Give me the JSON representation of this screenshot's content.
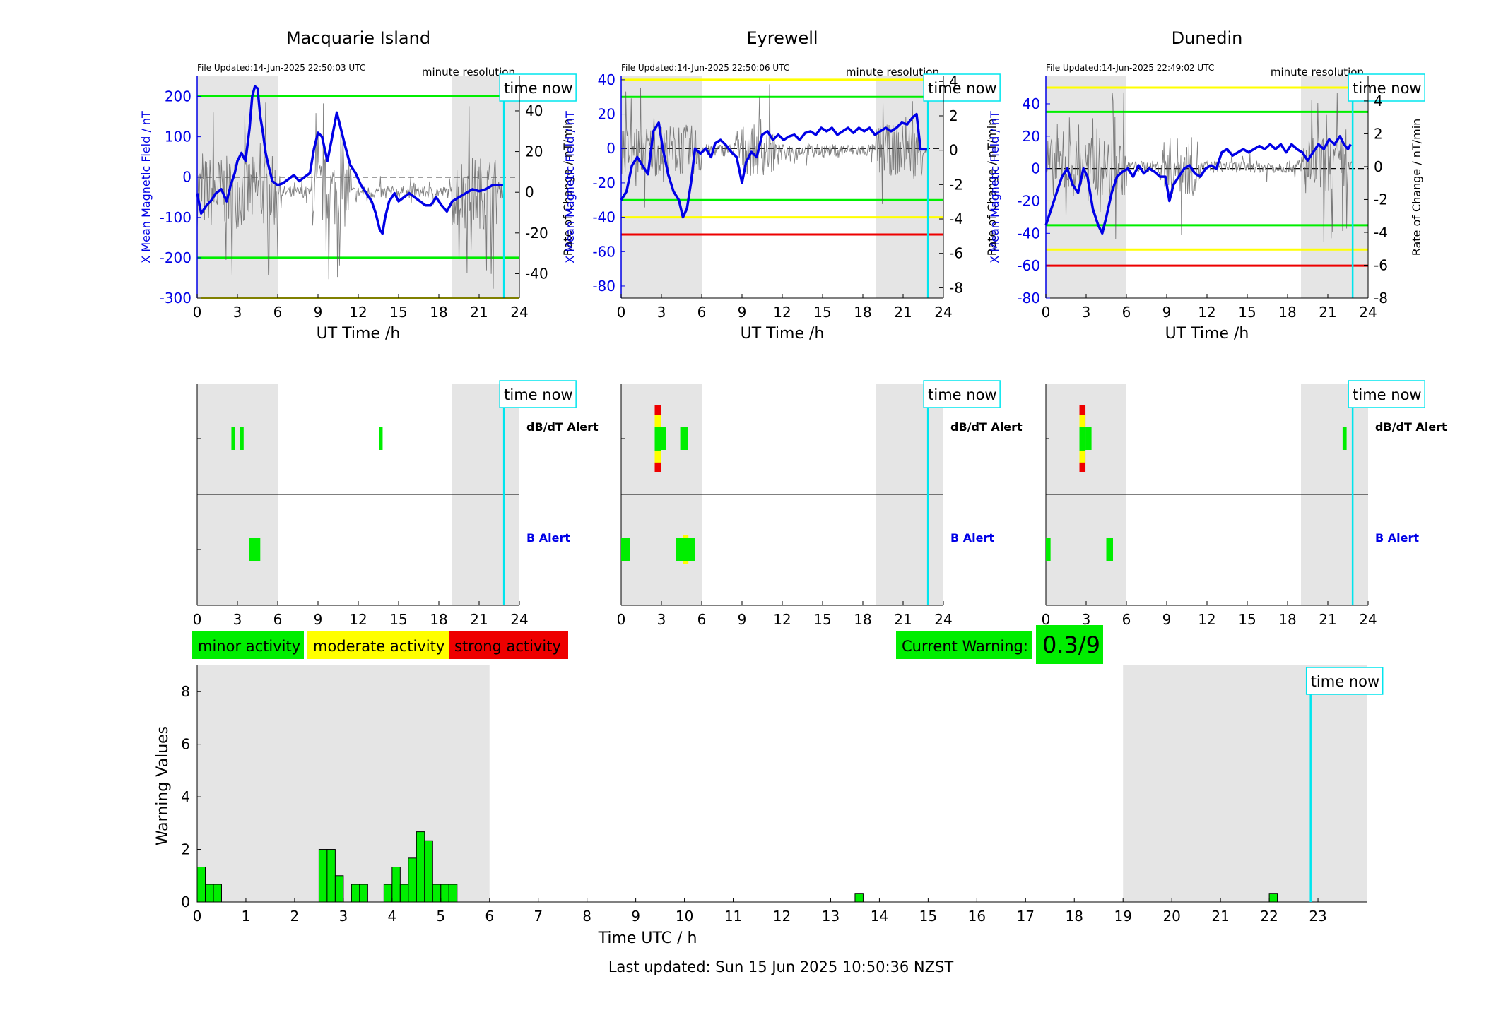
{
  "footer": {
    "last_updated": "Last updated: Sun 15 Jun 2025 10:50:36 NZST"
  },
  "colors": {
    "field_trace": "#0000e6",
    "rate_trace": "#555555",
    "night_shade": "#e5e5e5",
    "time_now_line": "#00e5ee",
    "green": "#00ee00",
    "yellow": "#ffff00",
    "red": "#ee0000",
    "axis_blue": "#0000e6"
  },
  "labels": {
    "minute_resolution": "minute resolution",
    "time_now": "time now",
    "ut_xlabel": "UT Time /h",
    "left_ylabel": "X Mean Magnetic Field / nT",
    "right_ylabel": "Rate of Change / nT/min",
    "dbdt_alert": "dB/dT Alert",
    "b_alert": "B Alert"
  },
  "legend": {
    "minor": "minor activity",
    "moderate": "moderate activity",
    "strong": "strong activity",
    "current_warning_label": "Current Warning:",
    "current_warning_value": "0.3/9"
  },
  "stations": [
    {
      "title": "Macquarie Island",
      "file_updated": "File Updated:14-Jun-2025 22:50:03 UTC",
      "left_ylim": [
        -300,
        250
      ],
      "left_ticks": [
        -300,
        -200,
        -100,
        0,
        100,
        200
      ],
      "right_ylim": [
        -52,
        57
      ],
      "right_ticks": [
        -40,
        -20,
        0,
        20,
        40
      ],
      "thresholds": [
        {
          "value": 200,
          "color": "green"
        },
        {
          "value": -200,
          "color": "green"
        },
        {
          "value": -300,
          "color": "yellow"
        }
      ],
      "field_trace": [
        [
          0,
          -40
        ],
        [
          0.3,
          -90
        ],
        [
          0.7,
          -70
        ],
        [
          1,
          -60
        ],
        [
          1.4,
          -40
        ],
        [
          1.8,
          -30
        ],
        [
          2.2,
          -60
        ],
        [
          2.5,
          -20
        ],
        [
          2.8,
          10
        ],
        [
          3,
          40
        ],
        [
          3.3,
          60
        ],
        [
          3.6,
          40
        ],
        [
          3.9,
          120
        ],
        [
          4.1,
          200
        ],
        [
          4.3,
          225
        ],
        [
          4.5,
          220
        ],
        [
          4.7,
          150
        ],
        [
          4.9,
          110
        ],
        [
          5.1,
          60
        ],
        [
          5.3,
          30
        ],
        [
          5.6,
          -10
        ],
        [
          6,
          -20
        ],
        [
          6.4,
          -15
        ],
        [
          6.8,
          -5
        ],
        [
          7.2,
          5
        ],
        [
          7.6,
          -10
        ],
        [
          8,
          0
        ],
        [
          8.4,
          10
        ],
        [
          8.7,
          70
        ],
        [
          9,
          110
        ],
        [
          9.3,
          100
        ],
        [
          9.7,
          40
        ],
        [
          10,
          90
        ],
        [
          10.4,
          160
        ],
        [
          10.7,
          120
        ],
        [
          11,
          80
        ],
        [
          11.4,
          30
        ],
        [
          11.8,
          10
        ],
        [
          12.2,
          -20
        ],
        [
          12.6,
          -40
        ],
        [
          13,
          -60
        ],
        [
          13.3,
          -90
        ],
        [
          13.6,
          -130
        ],
        [
          13.8,
          -140
        ],
        [
          14,
          -100
        ],
        [
          14.3,
          -60
        ],
        [
          14.7,
          -40
        ],
        [
          15,
          -60
        ],
        [
          15.4,
          -50
        ],
        [
          15.8,
          -40
        ],
        [
          16.2,
          -50
        ],
        [
          16.6,
          -60
        ],
        [
          17,
          -70
        ],
        [
          17.4,
          -70
        ],
        [
          17.8,
          -50
        ],
        [
          18.2,
          -70
        ],
        [
          18.6,
          -85
        ],
        [
          19,
          -60
        ],
        [
          19.5,
          -50
        ],
        [
          20,
          -40
        ],
        [
          20.5,
          -30
        ],
        [
          21,
          -35
        ],
        [
          21.5,
          -30
        ],
        [
          22,
          -20
        ],
        [
          22.5,
          -20
        ],
        [
          22.85,
          -20
        ]
      ],
      "rate_amplitude": 30,
      "rate_quiet": 5,
      "dbdt_alerts": [
        {
          "start": 2.55,
          "end": 2.8,
          "color": "green"
        },
        {
          "start": 3.2,
          "end": 3.45,
          "color": "green"
        },
        {
          "start": 13.55,
          "end": 13.8,
          "color": "green"
        }
      ],
      "b_alerts": [
        {
          "start": 3.85,
          "end": 4.7,
          "color": "green"
        }
      ]
    },
    {
      "title": "Eyrewell",
      "file_updated": "File Updated:14-Jun-2025 22:50:06 UTC",
      "left_ylim": [
        -87,
        42
      ],
      "left_ticks": [
        -80,
        -60,
        -40,
        -20,
        0,
        20,
        40
      ],
      "right_ylim": [
        -8.6,
        4.3
      ],
      "right_ticks": [
        -8,
        -6,
        -4,
        -2,
        0,
        2,
        4
      ],
      "thresholds": [
        {
          "value": 40,
          "color": "yellow"
        },
        {
          "value": 30,
          "color": "green"
        },
        {
          "value": -30,
          "color": "green"
        },
        {
          "value": -40,
          "color": "yellow"
        },
        {
          "value": -50,
          "color": "red"
        }
      ],
      "field_trace": [
        [
          0,
          -30
        ],
        [
          0.4,
          -25
        ],
        [
          0.8,
          -10
        ],
        [
          1.2,
          -5
        ],
        [
          1.6,
          -10
        ],
        [
          2,
          -15
        ],
        [
          2.4,
          10
        ],
        [
          2.8,
          15
        ],
        [
          3.1,
          0
        ],
        [
          3.5,
          -15
        ],
        [
          3.9,
          -25
        ],
        [
          4.3,
          -30
        ],
        [
          4.6,
          -40
        ],
        [
          4.9,
          -35
        ],
        [
          5.2,
          -20
        ],
        [
          5.5,
          0
        ],
        [
          5.9,
          -3
        ],
        [
          6.3,
          0
        ],
        [
          6.7,
          -5
        ],
        [
          7,
          3
        ],
        [
          7.4,
          5
        ],
        [
          7.8,
          2
        ],
        [
          8.2,
          -2
        ],
        [
          8.6,
          -5
        ],
        [
          9,
          -20
        ],
        [
          9.3,
          -8
        ],
        [
          9.7,
          -2
        ],
        [
          10.1,
          -5
        ],
        [
          10.5,
          8
        ],
        [
          10.9,
          10
        ],
        [
          11.3,
          5
        ],
        [
          11.7,
          8
        ],
        [
          12.1,
          5
        ],
        [
          12.5,
          7
        ],
        [
          12.9,
          8
        ],
        [
          13.3,
          5
        ],
        [
          13.7,
          9
        ],
        [
          14.1,
          10
        ],
        [
          14.5,
          8
        ],
        [
          14.9,
          12
        ],
        [
          15.3,
          10
        ],
        [
          15.7,
          12
        ],
        [
          16.1,
          8
        ],
        [
          16.5,
          10
        ],
        [
          16.9,
          12
        ],
        [
          17.3,
          9
        ],
        [
          17.7,
          12
        ],
        [
          18.1,
          10
        ],
        [
          18.5,
          12
        ],
        [
          18.9,
          8
        ],
        [
          19.3,
          10
        ],
        [
          19.7,
          12
        ],
        [
          20.1,
          10
        ],
        [
          20.5,
          12
        ],
        [
          20.9,
          15
        ],
        [
          21.3,
          14
        ],
        [
          21.7,
          18
        ],
        [
          22,
          20
        ],
        [
          22.3,
          -0.5
        ],
        [
          22.85,
          -0.5
        ]
      ],
      "flat_after": 22.3,
      "rate_amplitude": 2.5,
      "rate_quiet": 0.6,
      "dbdt_alerts": [
        {
          "start": 2.5,
          "end": 2.95,
          "color": "red",
          "inner": "green",
          "mid": "yellow"
        },
        {
          "start": 3.0,
          "end": 3.35,
          "color": "green"
        },
        {
          "start": 4.4,
          "end": 5.0,
          "color": "green"
        }
      ],
      "b_alerts": [
        {
          "start": 0.0,
          "end": 0.65,
          "color": "green"
        },
        {
          "start": 4.1,
          "end": 5.5,
          "color": "green",
          "mid": "yellow"
        }
      ]
    },
    {
      "title": "Dunedin",
      "file_updated": "File Updated:14-Jun-2025 22:49:02 UTC",
      "left_ylim": [
        -80,
        57
      ],
      "left_ticks": [
        -80,
        -60,
        -40,
        -20,
        0,
        20,
        40
      ],
      "right_ylim": [
        -8,
        5.5
      ],
      "right_ticks": [
        -8,
        -6,
        -4,
        -2,
        0,
        2,
        4
      ],
      "thresholds": [
        {
          "value": 50,
          "color": "yellow"
        },
        {
          "value": 35,
          "color": "green"
        },
        {
          "value": -35,
          "color": "green"
        },
        {
          "value": -50,
          "color": "yellow"
        },
        {
          "value": -60,
          "color": "red"
        }
      ],
      "field_trace": [
        [
          0,
          -35
        ],
        [
          0.4,
          -25
        ],
        [
          0.8,
          -15
        ],
        [
          1.2,
          -5
        ],
        [
          1.6,
          0
        ],
        [
          2,
          -10
        ],
        [
          2.4,
          -15
        ],
        [
          2.8,
          0
        ],
        [
          3.1,
          -5
        ],
        [
          3.5,
          -25
        ],
        [
          3.9,
          -35
        ],
        [
          4.2,
          -40
        ],
        [
          4.5,
          -30
        ],
        [
          4.9,
          -15
        ],
        [
          5.3,
          -5
        ],
        [
          5.7,
          -2
        ],
        [
          6.1,
          0
        ],
        [
          6.5,
          -5
        ],
        [
          6.9,
          2
        ],
        [
          7.3,
          -3
        ],
        [
          7.7,
          0
        ],
        [
          8.1,
          -2
        ],
        [
          8.5,
          -5
        ],
        [
          8.9,
          -5
        ],
        [
          9.2,
          -20
        ],
        [
          9.5,
          -10
        ],
        [
          9.9,
          -5
        ],
        [
          10.3,
          0
        ],
        [
          10.7,
          2
        ],
        [
          11.1,
          -3
        ],
        [
          11.5,
          -5
        ],
        [
          11.9,
          0
        ],
        [
          12.3,
          2
        ],
        [
          12.7,
          0
        ],
        [
          13.1,
          10
        ],
        [
          13.5,
          12
        ],
        [
          13.9,
          8
        ],
        [
          14.3,
          10
        ],
        [
          14.7,
          12
        ],
        [
          15.1,
          10
        ],
        [
          15.5,
          12
        ],
        [
          15.9,
          14
        ],
        [
          16.3,
          12
        ],
        [
          16.7,
          15
        ],
        [
          17.1,
          12
        ],
        [
          17.5,
          15
        ],
        [
          17.9,
          10
        ],
        [
          18.3,
          15
        ],
        [
          18.7,
          12
        ],
        [
          19.1,
          10
        ],
        [
          19.5,
          5
        ],
        [
          19.9,
          10
        ],
        [
          20.3,
          15
        ],
        [
          20.7,
          12
        ],
        [
          21.1,
          18
        ],
        [
          21.5,
          15
        ],
        [
          21.9,
          20
        ],
        [
          22.2,
          15
        ],
        [
          22.5,
          12
        ],
        [
          22.7,
          15
        ]
      ],
      "rate_amplitude": 3,
      "rate_quiet": 0.6,
      "dbdt_alerts": [
        {
          "start": 2.5,
          "end": 2.95,
          "color": "red",
          "inner": "green",
          "mid": "yellow"
        },
        {
          "start": 2.95,
          "end": 3.4,
          "color": "green"
        },
        {
          "start": 22.1,
          "end": 22.4,
          "color": "green"
        }
      ],
      "b_alerts": [
        {
          "start": 0.0,
          "end": 0.35,
          "color": "green"
        },
        {
          "start": 4.5,
          "end": 5.0,
          "color": "green"
        }
      ]
    }
  ],
  "chart_data": {
    "type": "bar",
    "xlabel": "Time UTC / h",
    "ylabel": "Warning Values",
    "xlim": [
      0,
      24
    ],
    "ylim": [
      0,
      9
    ],
    "xticks": [
      0,
      1,
      2,
      3,
      4,
      5,
      6,
      7,
      8,
      9,
      10,
      11,
      12,
      13,
      14,
      15,
      16,
      17,
      18,
      19,
      20,
      21,
      22,
      23
    ],
    "yticks": [
      0,
      2,
      4,
      6,
      8
    ],
    "bar_width_h": 0.1667,
    "bars": [
      {
        "x": 0.0,
        "value": 1.33
      },
      {
        "x": 0.1667,
        "value": 0.67
      },
      {
        "x": 0.3333,
        "value": 0.67
      },
      {
        "x": 2.5,
        "value": 2.0
      },
      {
        "x": 2.6667,
        "value": 2.0
      },
      {
        "x": 2.8333,
        "value": 1.0
      },
      {
        "x": 3.1667,
        "value": 0.67
      },
      {
        "x": 3.3333,
        "value": 0.67
      },
      {
        "x": 3.8333,
        "value": 0.67
      },
      {
        "x": 4.0,
        "value": 1.33
      },
      {
        "x": 4.1667,
        "value": 0.67
      },
      {
        "x": 4.3333,
        "value": 1.67
      },
      {
        "x": 4.5,
        "value": 2.67
      },
      {
        "x": 4.6667,
        "value": 2.33
      },
      {
        "x": 4.8333,
        "value": 0.67
      },
      {
        "x": 5.0,
        "value": 0.67
      },
      {
        "x": 5.1667,
        "value": 0.67
      },
      {
        "x": 13.5,
        "value": 0.33
      },
      {
        "x": 22.0,
        "value": 0.33
      }
    ],
    "night_bands": [
      [
        0,
        6
      ],
      [
        19,
        24
      ]
    ],
    "time_now": 22.85
  },
  "time_now_hours": 22.85,
  "night_bands": [
    [
      0,
      6
    ],
    [
      19,
      24
    ]
  ],
  "top_xticks": [
    0,
    3,
    6,
    9,
    12,
    15,
    18,
    21,
    24
  ]
}
